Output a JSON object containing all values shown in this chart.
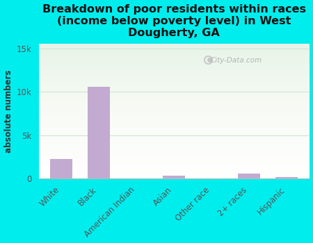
{
  "title": "Breakdown of poor residents within races\n(income below poverty level) in West\nDougherty, GA",
  "categories": [
    "White",
    "Black",
    "American Indian",
    "Asian",
    "Other race",
    "2+ races",
    "Hispanic"
  ],
  "values": [
    2300,
    10600,
    10,
    350,
    20,
    600,
    150
  ],
  "bar_color": "#c2aad0",
  "ylabel": "absolute numbers",
  "yticks": [
    0,
    5000,
    10000,
    15000
  ],
  "ytick_labels": [
    "0",
    "5k",
    "10k",
    "15k"
  ],
  "ylim": [
    0,
    15500
  ],
  "bg_outer": "#00eded",
  "grid_color": "#d0e4d0",
  "watermark": "City-Data.com",
  "title_fontsize": 11.5,
  "label_fontsize": 8.5,
  "tick_fontsize": 8.5
}
